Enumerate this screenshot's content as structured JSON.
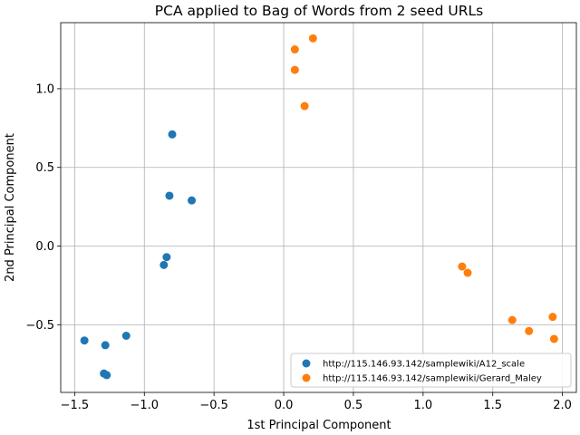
{
  "chart_data": {
    "type": "scatter",
    "title": "PCA applied to Bag of Words from 2 seed URLs",
    "xlabel": "1st Principal Component",
    "ylabel": "2nd Principal Component",
    "xlim": [
      -1.6,
      2.1
    ],
    "ylim": [
      -0.93,
      1.42
    ],
    "xticks": [
      -1.5,
      -1.0,
      -0.5,
      0.0,
      0.5,
      1.0,
      1.5,
      2.0
    ],
    "xtick_labels": [
      "−1.5",
      "−1.0",
      "−0.5",
      "0.0",
      "0.5",
      "1.0",
      "1.5",
      "2.0"
    ],
    "yticks": [
      -0.5,
      0.0,
      0.5,
      1.0
    ],
    "ytick_labels": [
      "−0.5",
      "0.0",
      "0.5",
      "1.0"
    ],
    "grid": true,
    "legend_position": "lower-right",
    "series": [
      {
        "name": "http://115.146.93.142/samplewiki/A12_scale",
        "color": "#1f77b4",
        "points": [
          [
            -0.8,
            0.71
          ],
          [
            -0.82,
            0.32
          ],
          [
            -0.66,
            0.29
          ],
          [
            -0.84,
            -0.07
          ],
          [
            -0.86,
            -0.12
          ],
          [
            -1.43,
            -0.6
          ],
          [
            -1.28,
            -0.63
          ],
          [
            -1.13,
            -0.57
          ],
          [
            -1.29,
            -0.81
          ],
          [
            -1.27,
            -0.82
          ]
        ]
      },
      {
        "name": "http://115.146.93.142/samplewiki/Gerard_Maley",
        "color": "#ff7f0e",
        "points": [
          [
            0.21,
            1.32
          ],
          [
            0.08,
            1.25
          ],
          [
            0.08,
            1.12
          ],
          [
            0.15,
            0.89
          ],
          [
            1.28,
            -0.13
          ],
          [
            1.32,
            -0.17
          ],
          [
            1.64,
            -0.47
          ],
          [
            1.93,
            -0.45
          ],
          [
            1.76,
            -0.54
          ],
          [
            1.94,
            -0.59
          ]
        ]
      }
    ]
  }
}
